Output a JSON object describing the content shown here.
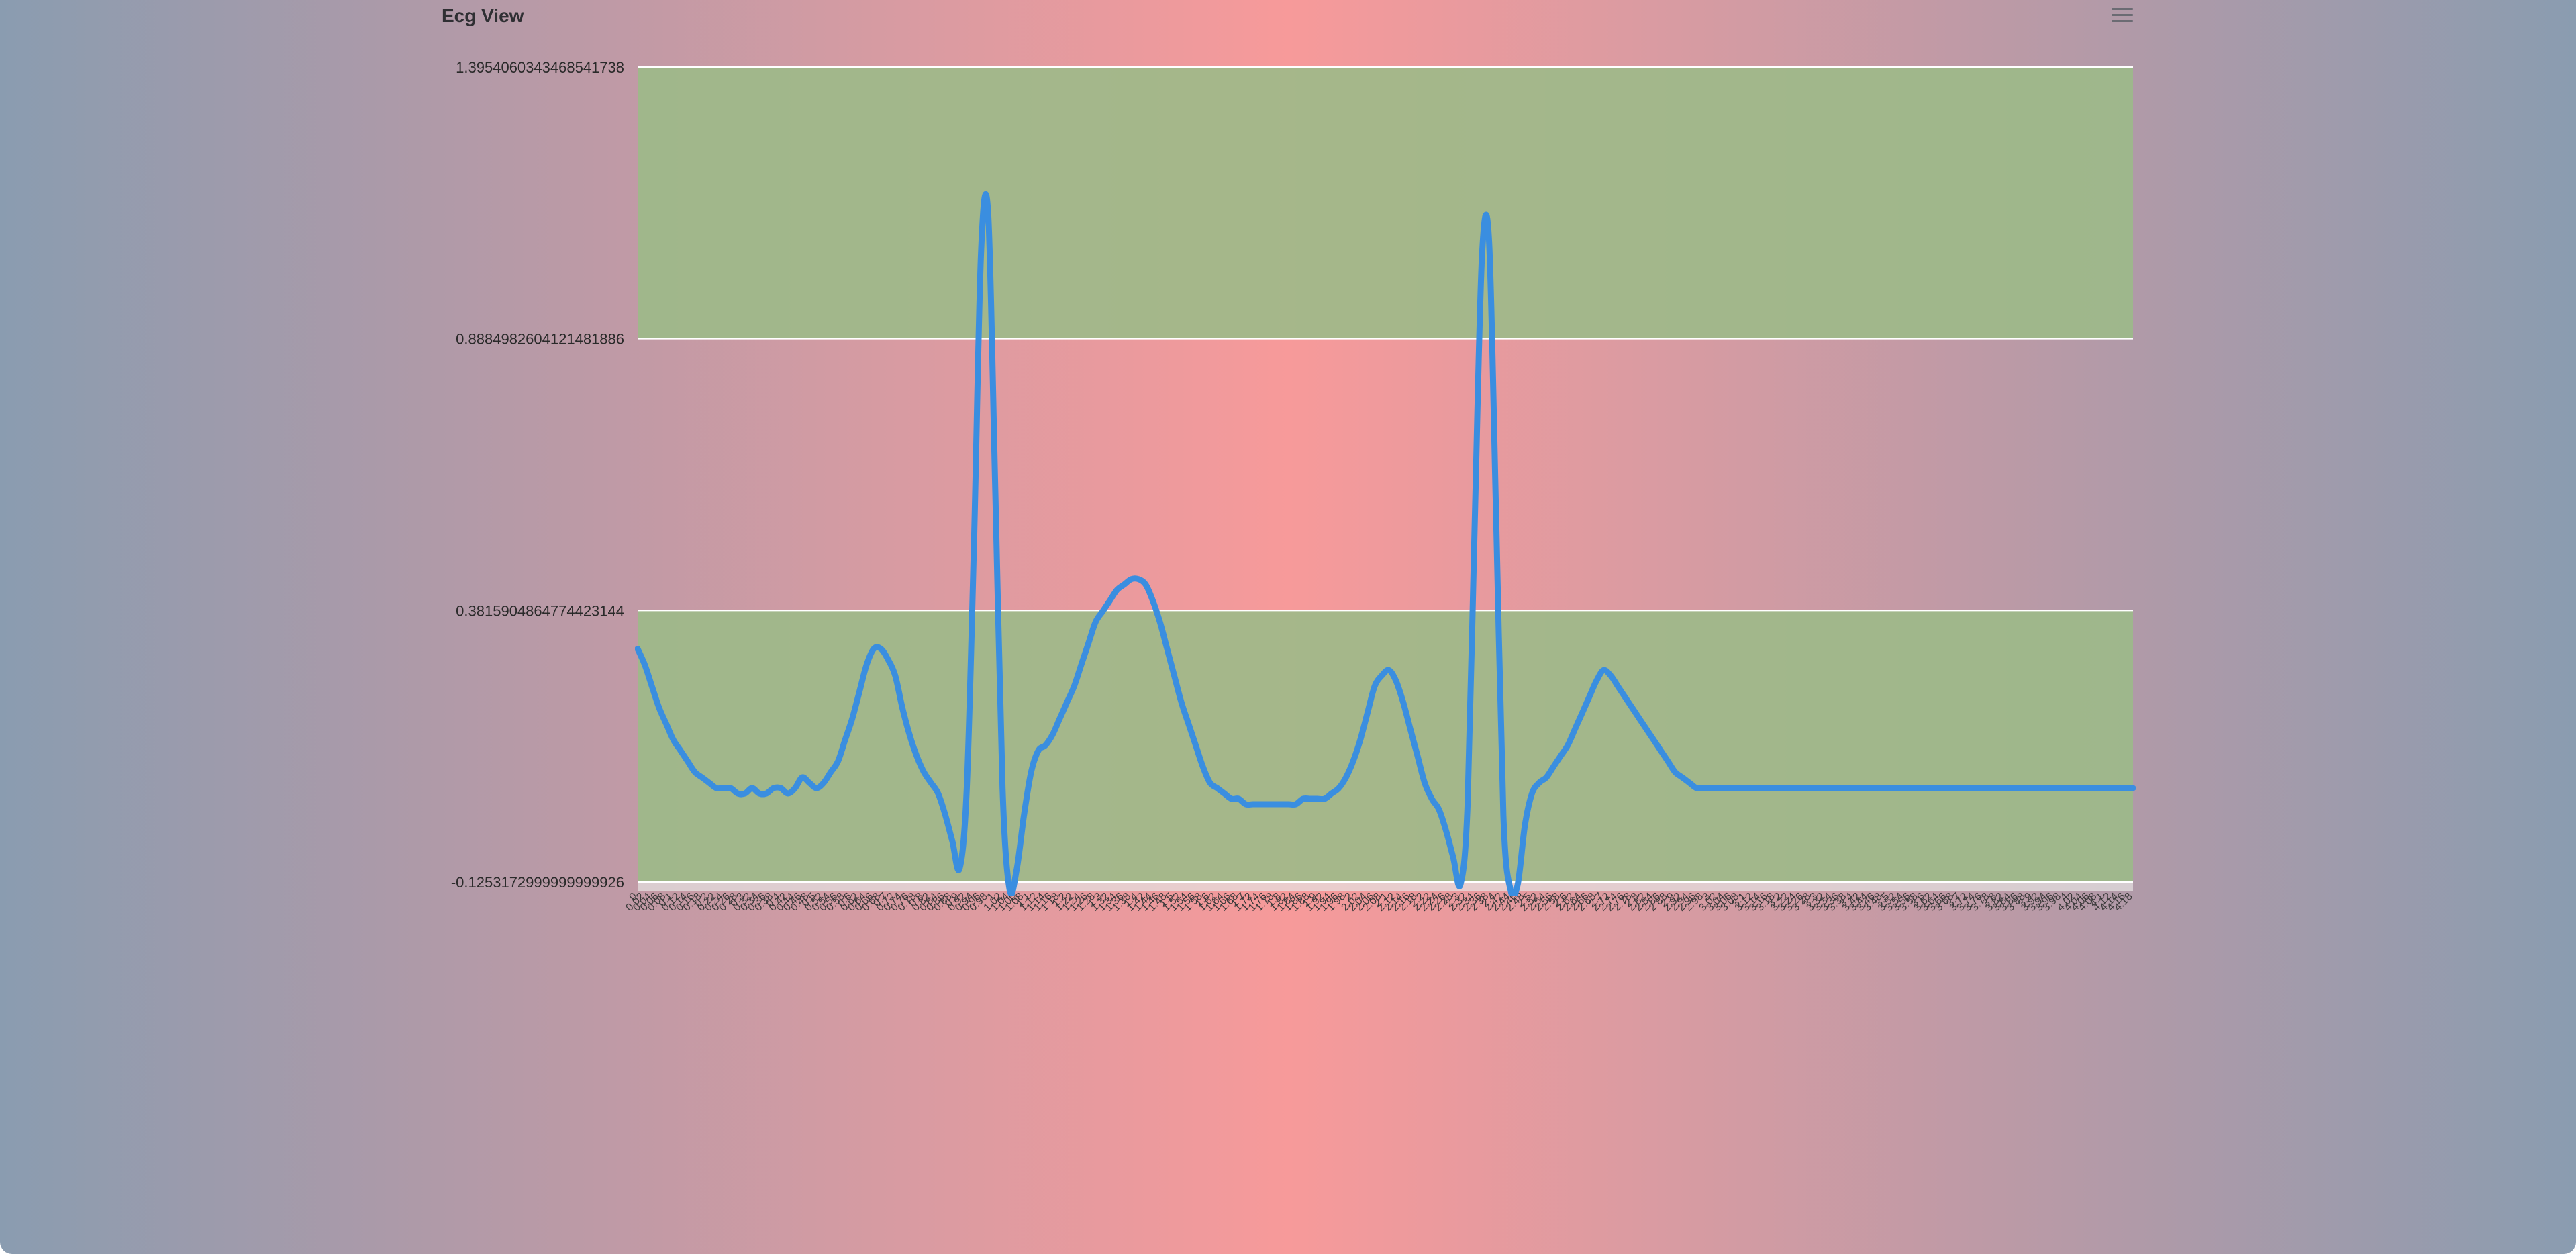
{
  "header": {
    "title": "Ecg View"
  },
  "colors": {
    "line": "#3a8ee0",
    "band": "#9cba88",
    "gridline": "#ffffff"
  },
  "icons": {
    "menu": "hamburger-menu-icon"
  },
  "chart_data": {
    "type": "line",
    "title": "Ecg View",
    "ylim": [
      -0.1253173,
      1.3954060343468542
    ],
    "ytick_labels": [
      "1.3954060343468541738",
      "0.8884982604121481886",
      "0.3815904864774423144",
      "-0.1253172999999999926"
    ],
    "ytick_values": [
      1.3954060343468542,
      0.8884982604121482,
      0.3815904864774423,
      -0.1253173
    ],
    "bands": [
      [
        0.3815904864774423,
        -0.1253173
      ],
      [
        1.3954060343468542,
        0.8884982604121482
      ]
    ],
    "grid": true,
    "legend": "none",
    "x": [
      0,
      0.02,
      0.04,
      0.06,
      0.08,
      0.1,
      0.12,
      0.14,
      0.16,
      0.18,
      0.2,
      0.22,
      0.24,
      0.26,
      0.28,
      0.3,
      0.32,
      0.34,
      0.36,
      0.38,
      0.4,
      0.42,
      0.44,
      0.46,
      0.48,
      0.5,
      0.52,
      0.54,
      0.56,
      0.58,
      0.6,
      0.62,
      0.64,
      0.66,
      0.68,
      0.7,
      0.72,
      0.74,
      0.76,
      0.78,
      0.8,
      0.82,
      0.84,
      0.86,
      0.88,
      0.9,
      0.92,
      0.94,
      0.96,
      0.98,
      1,
      1.02,
      1.04,
      1.06,
      1.08,
      1.1,
      1.12,
      1.14,
      1.16,
      1.18,
      1.2,
      1.22,
      1.24,
      1.26,
      1.28,
      1.3,
      1.32,
      1.34,
      1.36,
      1.38,
      1.4,
      1.42,
      1.44,
      1.46,
      1.48,
      1.5,
      1.52,
      1.54,
      1.56,
      1.58,
      1.6,
      1.62,
      1.64,
      1.66,
      1.68,
      1.7,
      1.72,
      1.74,
      1.76,
      1.78,
      1.8,
      1.82,
      1.84,
      1.86,
      1.88,
      1.9,
      1.92,
      1.94,
      1.96,
      1.98,
      2,
      2.02,
      2.04,
      2.06,
      2.08,
      2.1,
      2.12,
      2.14,
      2.16,
      2.18,
      2.2,
      2.22,
      2.24,
      2.26,
      2.28,
      2.3,
      2.32,
      2.34,
      2.36,
      2.38,
      2.4,
      2.42,
      2.44,
      2.46,
      2.48,
      2.5,
      2.52,
      2.54,
      2.56,
      2.58,
      2.6,
      2.62,
      2.64,
      2.66,
      2.68,
      2.7,
      2.72,
      2.74,
      2.76,
      2.78,
      2.8,
      2.82,
      2.84,
      2.86,
      2.88,
      2.9,
      2.92,
      2.94,
      2.96,
      2.98,
      3,
      3.02,
      3.04,
      3.06,
      3.08,
      3.1,
      3.12,
      3.14,
      3.16,
      3.18,
      3.2,
      3.22,
      3.24,
      3.26,
      3.28,
      3.3,
      3.32,
      3.34,
      3.36,
      3.38,
      3.4,
      3.42,
      3.44,
      3.46,
      3.48,
      3.5,
      3.52,
      3.54,
      3.56,
      3.58,
      3.6,
      3.62,
      3.64,
      3.66,
      3.68,
      3.7,
      3.72,
      3.74,
      3.76,
      3.78,
      3.8,
      3.82,
      3.84,
      3.86,
      3.88,
      3.9,
      3.92,
      3.94,
      3.96,
      3.98,
      4,
      4.02,
      4.04,
      4.06,
      4.08,
      4.1,
      4.12,
      4.14,
      4.16,
      4.18
    ],
    "series": [
      {
        "values": [
          0.31,
          0.28,
          0.24,
          0.2,
          0.17,
          0.14,
          0.12,
          0.1,
          0.08,
          0.07,
          0.06,
          0.05,
          0.05,
          0.05,
          0.04,
          0.04,
          0.05,
          0.04,
          0.04,
          0.05,
          0.05,
          0.04,
          0.05,
          0.07,
          0.06,
          0.05,
          0.06,
          0.08,
          0.1,
          0.14,
          0.18,
          0.23,
          0.28,
          0.31,
          0.31,
          0.29,
          0.26,
          0.2,
          0.15,
          0.11,
          0.08,
          0.06,
          0.04,
          0.0,
          -0.05,
          -0.1,
          0.05,
          0.5,
          1.05,
          1.12,
          0.6,
          0.05,
          -0.14,
          -0.1,
          0.0,
          0.08,
          0.12,
          0.13,
          0.15,
          0.18,
          0.21,
          0.24,
          0.28,
          0.32,
          0.36,
          0.38,
          0.4,
          0.42,
          0.43,
          0.44,
          0.44,
          0.43,
          0.4,
          0.36,
          0.31,
          0.26,
          0.21,
          0.17,
          0.13,
          0.09,
          0.06,
          0.05,
          0.04,
          0.03,
          0.03,
          0.02,
          0.02,
          0.02,
          0.02,
          0.02,
          0.02,
          0.02,
          0.02,
          0.03,
          0.03,
          0.03,
          0.03,
          0.04,
          0.05,
          0.07,
          0.1,
          0.14,
          0.19,
          0.24,
          0.26,
          0.27,
          0.25,
          0.21,
          0.16,
          0.11,
          0.06,
          0.03,
          0.01,
          -0.03,
          -0.08,
          -0.13,
          0.02,
          0.55,
          1.04,
          1.07,
          0.55,
          0.0,
          -0.14,
          -0.13,
          -0.02,
          0.04,
          0.06,
          0.07,
          0.09,
          0.11,
          0.13,
          0.16,
          0.19,
          0.22,
          0.25,
          0.27,
          0.26,
          0.24,
          0.22,
          0.2,
          0.18,
          0.16,
          0.14,
          0.12,
          0.1,
          0.08,
          0.07,
          0.06,
          0.05,
          0.05,
          0.05,
          0.05,
          0.05,
          0.05,
          0.05,
          0.05,
          0.05,
          0.05,
          0.05,
          0.05,
          0.05,
          0.05,
          0.05,
          0.05,
          0.05,
          0.05,
          0.05,
          0.05,
          0.05,
          0.05,
          0.05,
          0.05,
          0.05,
          0.05,
          0.05,
          0.05,
          0.05,
          0.05,
          0.05,
          0.05,
          0.05,
          0.05,
          0.05,
          0.05,
          0.05,
          0.05,
          0.05,
          0.05,
          0.05,
          0.05,
          0.05,
          0.05,
          0.05,
          0.05,
          0.05,
          0.05,
          0.05,
          0.05,
          0.05,
          0.05,
          0.05,
          0.05,
          0.05,
          0.05,
          0.05,
          0.05,
          0.05,
          0.05,
          0.05,
          0.05
        ]
      }
    ]
  }
}
